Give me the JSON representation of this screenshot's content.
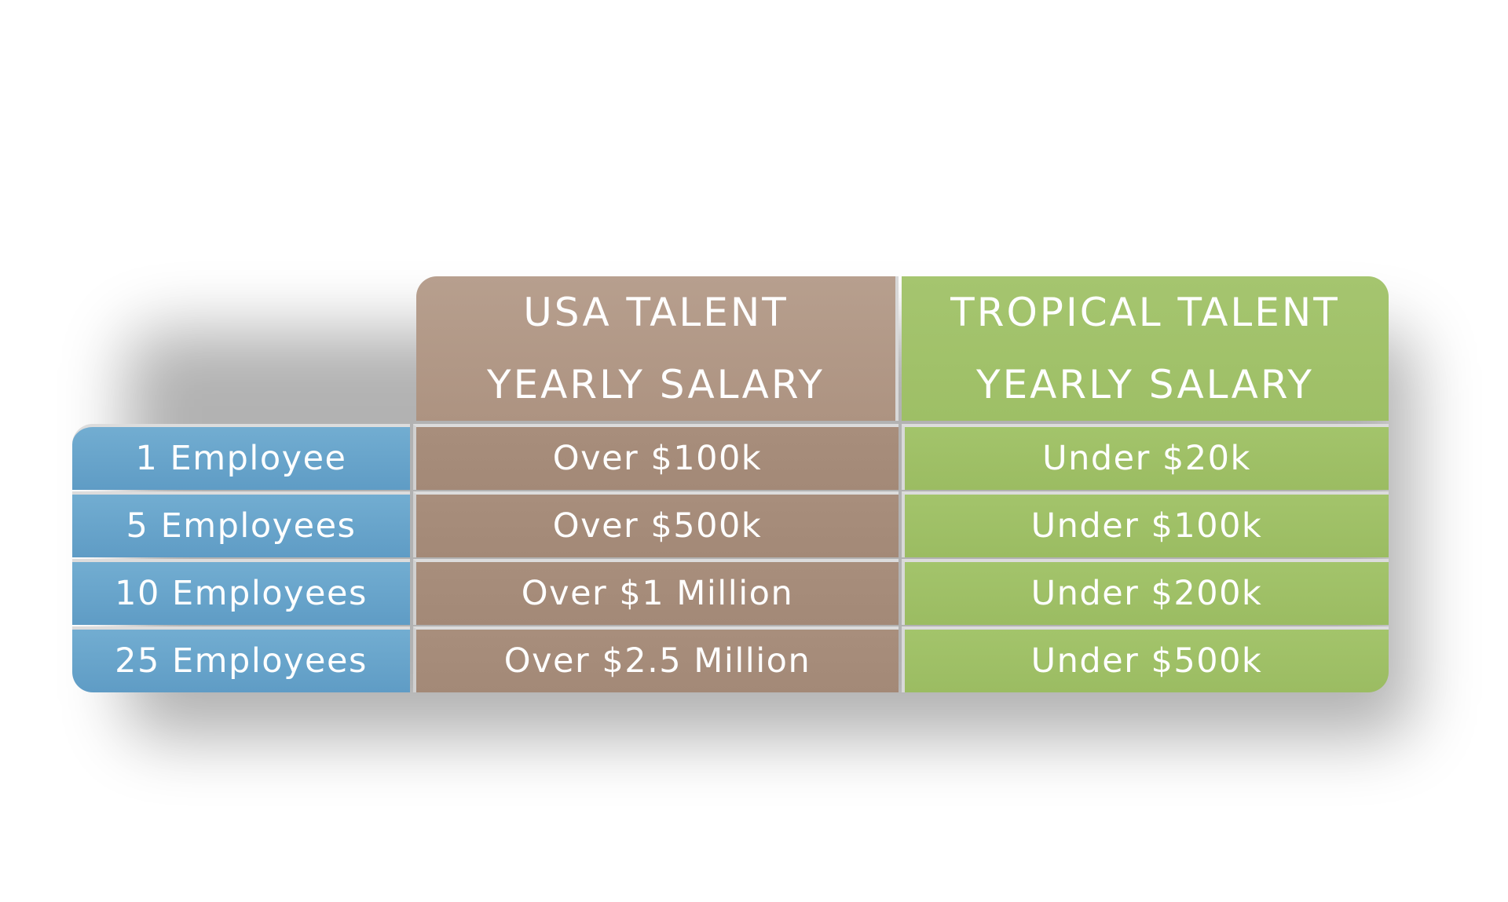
{
  "header": {
    "usa": {
      "line1": "USA TALENT",
      "line2": "YEARLY SALARY"
    },
    "tropical": {
      "line1": "TROPICAL TALENT",
      "line2": "YEARLY SALARY"
    }
  },
  "rows": [
    {
      "label": "1 Employee",
      "usa": "Over $100k",
      "tropical": "Under $20k"
    },
    {
      "label": "5 Employees",
      "usa": "Over $500k",
      "tropical": "Under $100k"
    },
    {
      "label": "10 Employees",
      "usa": "Over $1 Million",
      "tropical": "Under $200k"
    },
    {
      "label": "25 Employees",
      "usa": "Over $2.5 Million",
      "tropical": "Under $500k"
    }
  ],
  "colors": {
    "employees_blue": "#6aa6cd",
    "usa_brown": "#a88e7c",
    "tropical_green": "#a0c168"
  }
}
